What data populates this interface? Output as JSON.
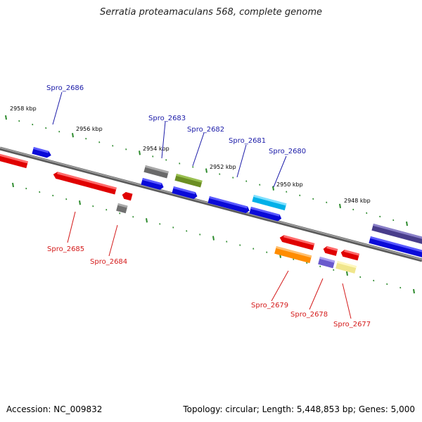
{
  "title": "Serratia proteamaculans 568, complete genome",
  "accession": "Accession: NC_009832",
  "summary": "Topology: circular; Length: 5,448,853 bp; Genes: 5,000",
  "colors": {
    "backbone": "#808080",
    "tick": "#2e8b2e",
    "label_forward": "#1a1aa8",
    "label_reverse": "#d41a1a"
  },
  "kbp_labels": [
    "2958 kbp",
    "2956 kbp",
    "2954 kbp",
    "2952 kbp",
    "2950 kbp",
    "2948 kbp"
  ],
  "genes_forward_labels": [
    "Spro_2686",
    "Spro_2683",
    "Spro_2682",
    "Spro_2681",
    "Spro_2680"
  ],
  "genes_reverse_labels": [
    "Spro_2685",
    "Spro_2684",
    "Spro_2679",
    "Spro_2678",
    "Spro_2677"
  ]
}
